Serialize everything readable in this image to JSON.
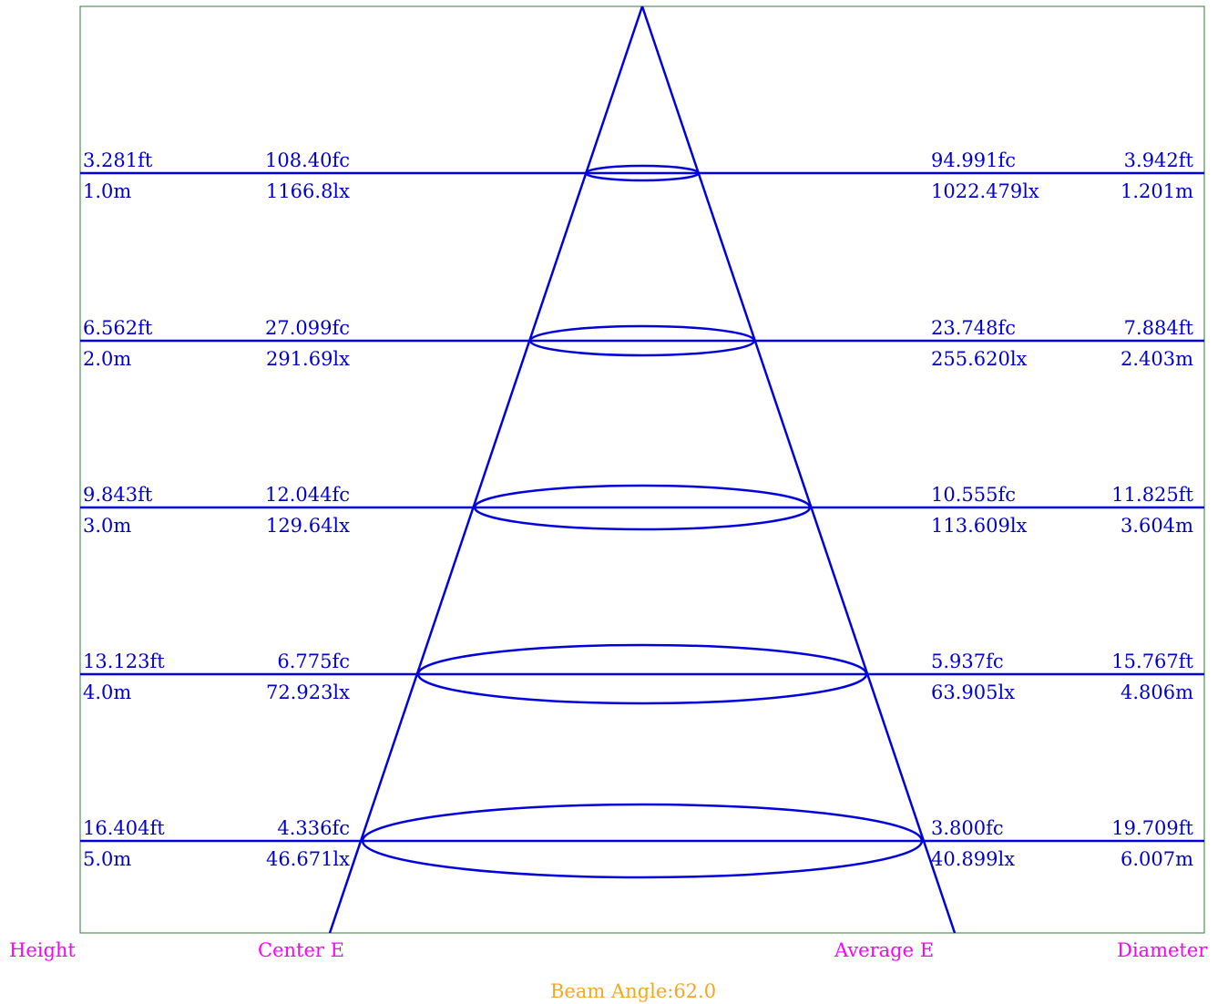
{
  "colors": {
    "frame": "#2e7d32",
    "beam": "#0000dd",
    "value_text": "#0000cc",
    "axis_label": "#ff00ff",
    "beam_angle": "#f5a623"
  },
  "beam_angle_label": "Beam Angle:62.0",
  "footer_labels": {
    "height": "Height",
    "center": "Center E",
    "average": "Average E",
    "diameter": "Diameter"
  },
  "levels": [
    {
      "height_ft": "3.281ft",
      "height_m": "1.0m",
      "center_fc": "108.40fc",
      "center_lx": "1166.8lx",
      "avg_fc": "94.991fc",
      "avg_lx": "1022.479lx",
      "diam_ft": "3.942ft",
      "diam_m": "1.201m"
    },
    {
      "height_ft": "6.562ft",
      "height_m": "2.0m",
      "center_fc": "27.099fc",
      "center_lx": "291.69lx",
      "avg_fc": "23.748fc",
      "avg_lx": "255.620lx",
      "diam_ft": "7.884ft",
      "diam_m": "2.403m"
    },
    {
      "height_ft": "9.843ft",
      "height_m": "3.0m",
      "center_fc": "12.044fc",
      "center_lx": "129.64lx",
      "avg_fc": "10.555fc",
      "avg_lx": "113.609lx",
      "diam_ft": "11.825ft",
      "diam_m": "3.604m"
    },
    {
      "height_ft": "13.123ft",
      "height_m": "4.0m",
      "center_fc": "6.775fc",
      "center_lx": "72.923lx",
      "avg_fc": "5.937fc",
      "avg_lx": "63.905lx",
      "diam_ft": "15.767ft",
      "diam_m": "4.806m"
    },
    {
      "height_ft": "16.404ft",
      "height_m": "5.0m",
      "center_fc": "4.336fc",
      "center_lx": "46.671lx",
      "avg_fc": "3.800fc",
      "avg_lx": "40.899lx",
      "diam_ft": "19.709ft",
      "diam_m": "6.007m"
    }
  ]
}
